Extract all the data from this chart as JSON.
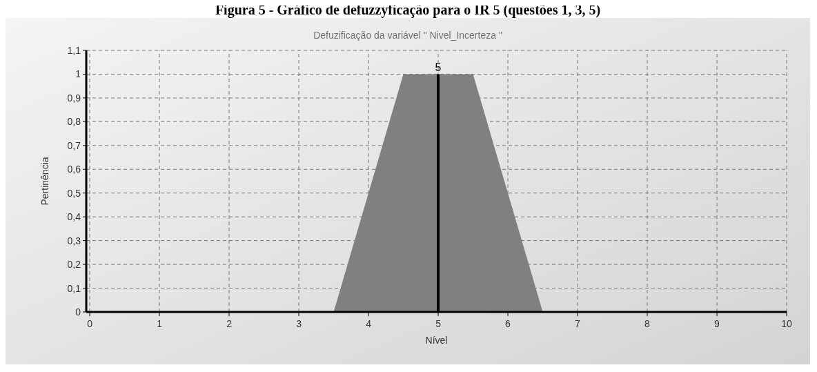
{
  "chart_data": {
    "type": "area",
    "title": "Figura 5 - Gráfico de defuzzyficação para o IR 5 (questões 1, 3, 5)",
    "subtitle": "Defuzificação da variável \" Nivel_Incerteza \"",
    "xlabel": "Nível",
    "ylabel": "Pertinência",
    "x": [
      3.5,
      4.5,
      5.5,
      6.5
    ],
    "series": [
      {
        "color": "#808080",
        "values": [
          0,
          1,
          1,
          0
        ]
      }
    ],
    "xlim": [
      -0.05,
      10
    ],
    "xticks": [
      0,
      1,
      2,
      3,
      4,
      5,
      6,
      7,
      8,
      9,
      10
    ],
    "ylim": [
      0,
      1.1
    ],
    "yticks": [
      0,
      {
        "value": 0.1,
        "label": "0,1"
      },
      {
        "value": 0.2,
        "label": "0,2"
      },
      {
        "value": 0.3,
        "label": "0,3"
      },
      {
        "value": 0.4,
        "label": "0,4"
      },
      {
        "value": 0.5,
        "label": "0,5"
      },
      {
        "value": 0.6,
        "label": "0,6"
      },
      {
        "value": 0.7,
        "label": "0,7"
      },
      {
        "value": 0.8,
        "label": "0,8"
      },
      {
        "value": 0.9,
        "label": "0,9"
      },
      1,
      {
        "value": 1.1,
        "label": "1,1"
      }
    ],
    "ref_lines": [
      {
        "axis": "x",
        "value": 5,
        "label": "5",
        "color": "#000000"
      }
    ],
    "grid": true
  }
}
